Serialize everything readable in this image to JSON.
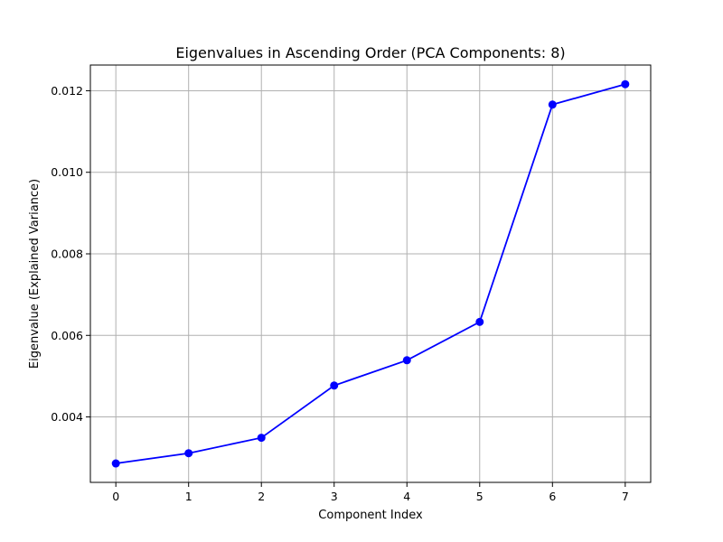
{
  "chart_data": {
    "type": "line",
    "title": "Eigenvalues in Ascending Order (PCA Components: 8)",
    "xlabel": "Component Index",
    "ylabel": "Eigenvalue (Explained Variance)",
    "x": [
      0,
      1,
      2,
      3,
      4,
      5,
      6,
      7
    ],
    "series": [
      {
        "values": [
          0.00286,
          0.00311,
          0.00349,
          0.00477,
          0.00539,
          0.00633,
          0.01166,
          0.01216
        ],
        "color": "#0000ff",
        "marker": "circle"
      }
    ],
    "xlim": [
      -0.35,
      7.35
    ],
    "ylim": [
      0.002395,
      0.01263
    ],
    "xticks": [
      0,
      1,
      2,
      3,
      4,
      5,
      6,
      7
    ],
    "xtick_labels": [
      "0",
      "1",
      "2",
      "3",
      "4",
      "5",
      "6",
      "7"
    ],
    "yticks": [
      0.004,
      0.006,
      0.008,
      0.01,
      0.012
    ],
    "ytick_labels": [
      "0.004",
      "0.006",
      "0.008",
      "0.010",
      "0.012"
    ],
    "grid": true
  }
}
